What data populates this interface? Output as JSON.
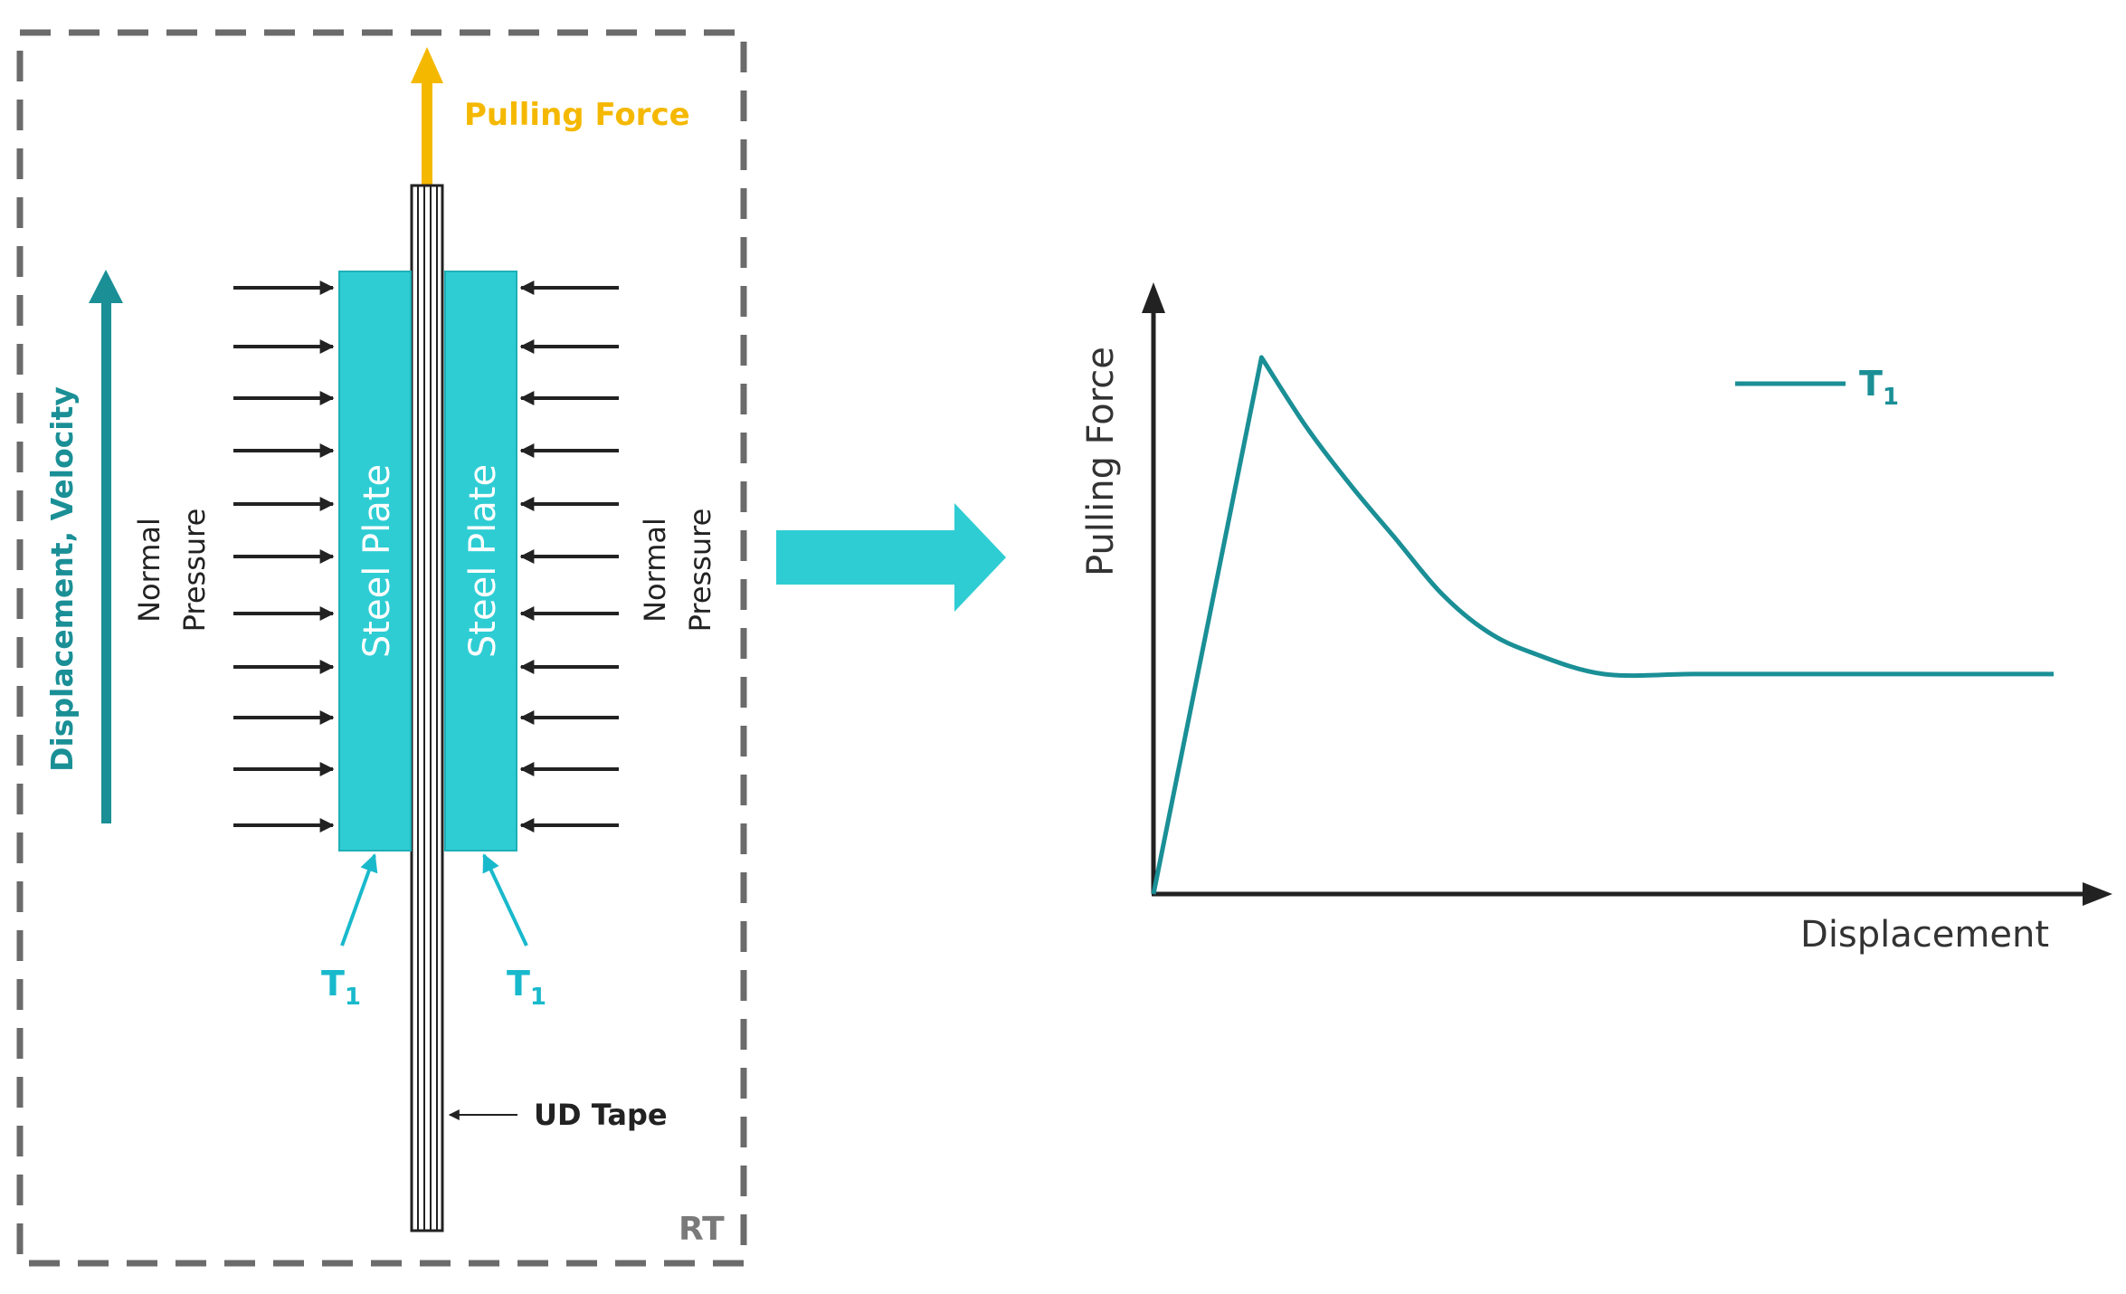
{
  "colors": {
    "teal_dark": "#1a8f96",
    "cyan_plate": "#2ecdd3",
    "cyan_label": "#19b9cc",
    "orange": "#f5b800",
    "dash_gray": "#6b6b6b",
    "arrow_dark": "#222222",
    "rt_gray": "#7a7a7a"
  },
  "left_panel": {
    "pulling_force_label": "Pulling Force",
    "displacement_velocity_label": "Displacement, Velocity",
    "normal_pressure_left": [
      "Normal",
      "Pressure"
    ],
    "normal_pressure_right": [
      "Normal",
      "Pressure"
    ],
    "steel_plate_left": "Steel Plate",
    "steel_plate_right": "Steel Plate",
    "t1_left": {
      "base": "T",
      "sub": "1"
    },
    "t1_right": {
      "base": "T",
      "sub": "1"
    },
    "ud_tape_label": "UD Tape",
    "rt_label": "RT"
  },
  "right_panel": {
    "y_axis_label": "Pulling Force",
    "x_axis_label": "Displacement",
    "legend": {
      "base": "T",
      "sub": "1"
    }
  },
  "chart_data": {
    "type": "line",
    "title": "",
    "xlabel": "Displacement",
    "ylabel": "Pulling Force",
    "xlim": [
      0,
      100
    ],
    "ylim": [
      0,
      100
    ],
    "series": [
      {
        "name": "T1",
        "x": [
          0,
          12,
          17,
          22,
          27,
          32,
          37,
          42,
          50,
          60,
          70,
          80,
          90,
          100
        ],
        "y": [
          0,
          100,
          87,
          76,
          66,
          56,
          49,
          45,
          41,
          41,
          41,
          41,
          41,
          41
        ]
      }
    ]
  }
}
